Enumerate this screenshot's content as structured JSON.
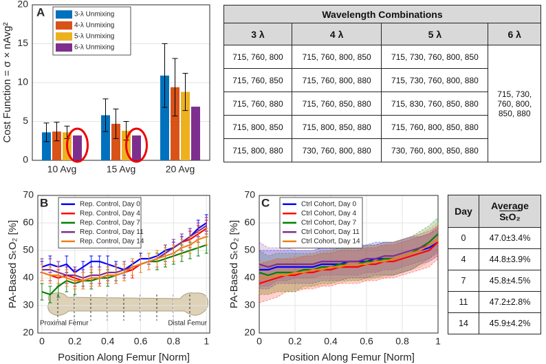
{
  "chart_data": [
    {
      "type": "bar",
      "panel": "A",
      "ylabel": "Cost Function = σ × nAvg²",
      "categories": [
        "10 Avg",
        "15 Avg",
        "20 Avg"
      ],
      "series": [
        {
          "name": "3-λ Unmixing",
          "color": "#0072BD",
          "values": [
            3.6,
            5.8,
            10.9
          ],
          "errors": [
            1.2,
            2.1,
            4.1
          ]
        },
        {
          "name": "4-λ Unmixing",
          "color": "#D95319",
          "values": [
            3.7,
            4.7,
            9.4
          ],
          "errors": [
            1.2,
            1.9,
            3.7
          ]
        },
        {
          "name": "5-λ Unmixing",
          "color": "#EDB120",
          "values": [
            3.6,
            3.8,
            8.8
          ],
          "errors": [
            0.8,
            1.2,
            2.4
          ]
        },
        {
          "name": "6-λ Unmixing",
          "color": "#7E2F8E",
          "values": [
            3.2,
            3.2,
            6.9
          ]
        }
      ],
      "ylim": [
        0,
        20
      ],
      "yticks": [
        0,
        5,
        10,
        15,
        20
      ],
      "grid": true,
      "legend": "upper left"
    },
    {
      "type": "line",
      "panel": "B",
      "error_style": "bar",
      "ylabel": "PA-Based SₜO₂ [%]",
      "xlabel": "Position Along Femur [Norm]",
      "annotations": [
        "Proximal Femur",
        "Distal Femur"
      ],
      "x": [
        0,
        0.05,
        0.1,
        0.15,
        0.2,
        0.25,
        0.3,
        0.35,
        0.4,
        0.45,
        0.5,
        0.55,
        0.6,
        0.65,
        0.7,
        0.75,
        0.8,
        0.85,
        0.9,
        0.95,
        1
      ],
      "series": [
        {
          "name": "Rep. Control, Day 0",
          "color": "#0000FF",
          "values": [
            44,
            45,
            44,
            45,
            42,
            44,
            46,
            46,
            45,
            44,
            43,
            45,
            47,
            47,
            48,
            50,
            51,
            53,
            55,
            58,
            60
          ],
          "errors": [
            2,
            3,
            2,
            3,
            2,
            2,
            2,
            2,
            3,
            2,
            2,
            2,
            2,
            2,
            2,
            2,
            2,
            2,
            3,
            3,
            3
          ]
        },
        {
          "name": "Rep. Control, Day 4",
          "color": "#FF0000",
          "values": [
            42,
            41,
            40,
            41,
            40,
            39,
            40,
            40,
            41,
            41,
            42,
            43,
            45,
            46,
            47,
            49,
            51,
            53,
            54,
            56,
            58
          ],
          "errors": [
            3,
            3,
            3,
            3,
            3,
            3,
            3,
            3,
            3,
            3,
            3,
            3,
            3,
            3,
            3,
            3,
            3,
            3,
            3,
            3,
            3
          ]
        },
        {
          "name": "Rep. Control, Day 7",
          "color": "#008000",
          "values": [
            35,
            34,
            37,
            39,
            38,
            39,
            39,
            40,
            40,
            41,
            42,
            44,
            45,
            46,
            46,
            47,
            48,
            49,
            50,
            51,
            52
          ],
          "errors": [
            3,
            3,
            4,
            4,
            4,
            3,
            3,
            3,
            3,
            3,
            3,
            3,
            3,
            3,
            3,
            3,
            3,
            3,
            3,
            3,
            3
          ]
        },
        {
          "name": "Rep. Control, Day 11",
          "color": "#7E2F8E",
          "values": [
            43,
            43,
            42,
            41,
            41,
            40,
            41,
            41,
            42,
            42,
            43,
            44,
            45,
            46,
            47,
            49,
            51,
            53,
            55,
            57,
            59
          ],
          "errors": [
            4,
            4,
            4,
            3,
            3,
            3,
            3,
            3,
            3,
            3,
            3,
            3,
            3,
            3,
            3,
            3,
            3,
            3,
            3,
            3,
            3
          ]
        },
        {
          "name": "Rep. Control, Day 14",
          "color": "#F07F1A",
          "values": [
            42,
            41,
            41,
            40,
            39,
            39,
            40,
            40,
            41,
            41,
            42,
            44,
            45,
            46,
            47,
            48,
            49,
            51,
            52,
            54,
            55
          ],
          "errors": [
            3,
            3,
            3,
            3,
            3,
            3,
            3,
            3,
            3,
            3,
            3,
            3,
            3,
            3,
            3,
            3,
            3,
            3,
            3,
            3,
            3
          ]
        }
      ],
      "xlim": [
        -0.025,
        1.02
      ],
      "xticks": [
        0,
        0.2,
        0.4,
        0.6,
        0.8,
        1
      ],
      "ylim": [
        20,
        70
      ],
      "yticks": [
        20,
        30,
        40,
        50,
        60,
        70
      ],
      "grid": true,
      "legend": "upper left"
    },
    {
      "type": "line",
      "panel": "C",
      "error_style": "band",
      "ylabel": "PA-Based SₜO₂ [%]",
      "xlabel": "Position Along Femur [Norm]",
      "x": [
        0,
        0.05,
        0.1,
        0.15,
        0.2,
        0.25,
        0.3,
        0.35,
        0.4,
        0.45,
        0.5,
        0.55,
        0.6,
        0.65,
        0.7,
        0.75,
        0.8,
        0.85,
        0.9,
        0.95,
        1
      ],
      "series": [
        {
          "name": "Ctrl Cohort, Day 0",
          "color": "#0000FF",
          "values": [
            43,
            43,
            44,
            44,
            44,
            44,
            44,
            45,
            45,
            45,
            46,
            46,
            46,
            47,
            47,
            47,
            48,
            49,
            50,
            51,
            53
          ],
          "errors": [
            7,
            7,
            6,
            6,
            6,
            6,
            6,
            6,
            6,
            6,
            6,
            6,
            6,
            6,
            6,
            6,
            6,
            6,
            5,
            5,
            5
          ]
        },
        {
          "name": "Ctrl Cohort, Day 4",
          "color": "#FF0000",
          "values": [
            38,
            39,
            40,
            41,
            41,
            42,
            42,
            43,
            43,
            44,
            44,
            44,
            45,
            45,
            46,
            46,
            47,
            48,
            49,
            50,
            53
          ],
          "errors": [
            7,
            7,
            7,
            6,
            6,
            6,
            6,
            6,
            6,
            6,
            6,
            6,
            6,
            6,
            6,
            6,
            6,
            6,
            6,
            6,
            6
          ]
        },
        {
          "name": "Ctrl Cohort, Day 7",
          "color": "#008000",
          "values": [
            42,
            41,
            42,
            42,
            42,
            43,
            43,
            44,
            44,
            45,
            45,
            45,
            46,
            46,
            47,
            47,
            48,
            49,
            51,
            53,
            56
          ],
          "errors": [
            8,
            7,
            7,
            7,
            7,
            6,
            6,
            6,
            6,
            6,
            6,
            6,
            6,
            6,
            6,
            6,
            6,
            6,
            6,
            6,
            6
          ]
        },
        {
          "name": "Ctrl Cohort, Day 11",
          "color": "#7E2F8E",
          "values": [
            45,
            44,
            45,
            45,
            45,
            45,
            45,
            46,
            46,
            46,
            46,
            46,
            47,
            47,
            48,
            48,
            49,
            50,
            51,
            52,
            54
          ],
          "errors": [
            8,
            7,
            6,
            6,
            5,
            5,
            5,
            5,
            5,
            5,
            5,
            5,
            5,
            5,
            5,
            5,
            5,
            5,
            5,
            5,
            5
          ]
        },
        {
          "name": "Ctrl Cohort, Day 14",
          "color": "#F07F1A",
          "values": [
            40,
            40,
            41,
            41,
            42,
            42,
            43,
            43,
            44,
            44,
            45,
            45,
            45,
            46,
            46,
            47,
            48,
            49,
            50,
            52,
            54
          ],
          "errors": [
            6,
            6,
            6,
            6,
            6,
            6,
            6,
            6,
            6,
            6,
            6,
            6,
            6,
            6,
            6,
            6,
            6,
            6,
            6,
            6,
            6
          ]
        }
      ],
      "xlim": [
        0,
        1
      ],
      "xticks": [
        0,
        0.2,
        0.4,
        0.6,
        0.8,
        1
      ],
      "ylim": [
        20,
        70
      ],
      "yticks": [
        20,
        30,
        40,
        50,
        60,
        70
      ],
      "grid": true,
      "legend": "upper left"
    }
  ],
  "wavelength_table": {
    "title": "Wavelength Combinations",
    "columns": [
      "3 λ",
      "4 λ",
      "5 λ",
      "6 λ"
    ],
    "rows": [
      [
        "715, 760, 800",
        "715, 760, 800, 850",
        "715, 730, 760, 800, 850"
      ],
      [
        "715, 760, 850",
        "715, 760, 800, 880",
        "715, 730, 760, 800, 880"
      ],
      [
        "715, 760, 880",
        "715, 760, 850, 880",
        "715, 830, 760, 850, 880"
      ],
      [
        "715, 800, 850",
        "715, 800, 850, 880",
        "715, 760, 800, 850, 880"
      ],
      [
        "715, 800, 880",
        "730, 760, 800, 880",
        "730, 760, 800, 850, 880"
      ]
    ],
    "six_lambda": "715, 730, 760, 800, 850, 880"
  },
  "day_table": {
    "header": {
      "day": "Day",
      "average": "Average",
      "quantity": "SₜO₂"
    },
    "rows": [
      [
        "0",
        "47.0±3.4%"
      ],
      [
        "4",
        "44.8±3.9%"
      ],
      [
        "7",
        "45.8±4.5%"
      ],
      [
        "11",
        "47.2±2.8%"
      ],
      [
        "14",
        "45.9±4.2%"
      ]
    ]
  }
}
